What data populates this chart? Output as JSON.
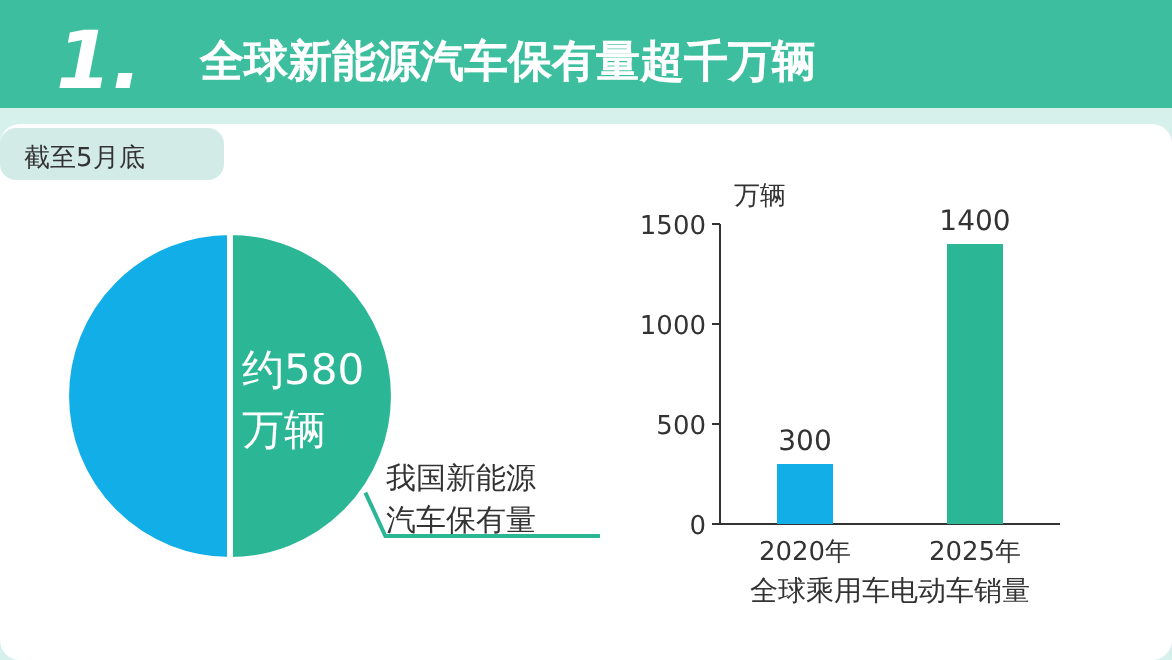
{
  "chart_data": [
    {
      "type": "pie",
      "title": "全球新能源汽车保有量超千万辆",
      "subtitle": "截至5月底",
      "annotations": [
        "1."
      ],
      "categories": [
        null,
        "我国新能源汽车保有量"
      ],
      "values": [
        50,
        50
      ],
      "colors": [
        "#12aee8",
        "#2bb795"
      ],
      "value_labels": [
        null,
        "约580万辆"
      ]
    },
    {
      "type": "bar",
      "ylabel": "万辆",
      "xlabel": "全球乘用车电动车销量",
      "categories": [
        "2020年",
        "2025年"
      ],
      "values": [
        300,
        1400
      ],
      "colors": [
        "#12aee8",
        "#2bb795"
      ],
      "ylim": [
        0,
        1500
      ],
      "yticks": [
        0,
        500,
        1000,
        1500
      ],
      "data_labels": true,
      "grid": false
    }
  ]
}
